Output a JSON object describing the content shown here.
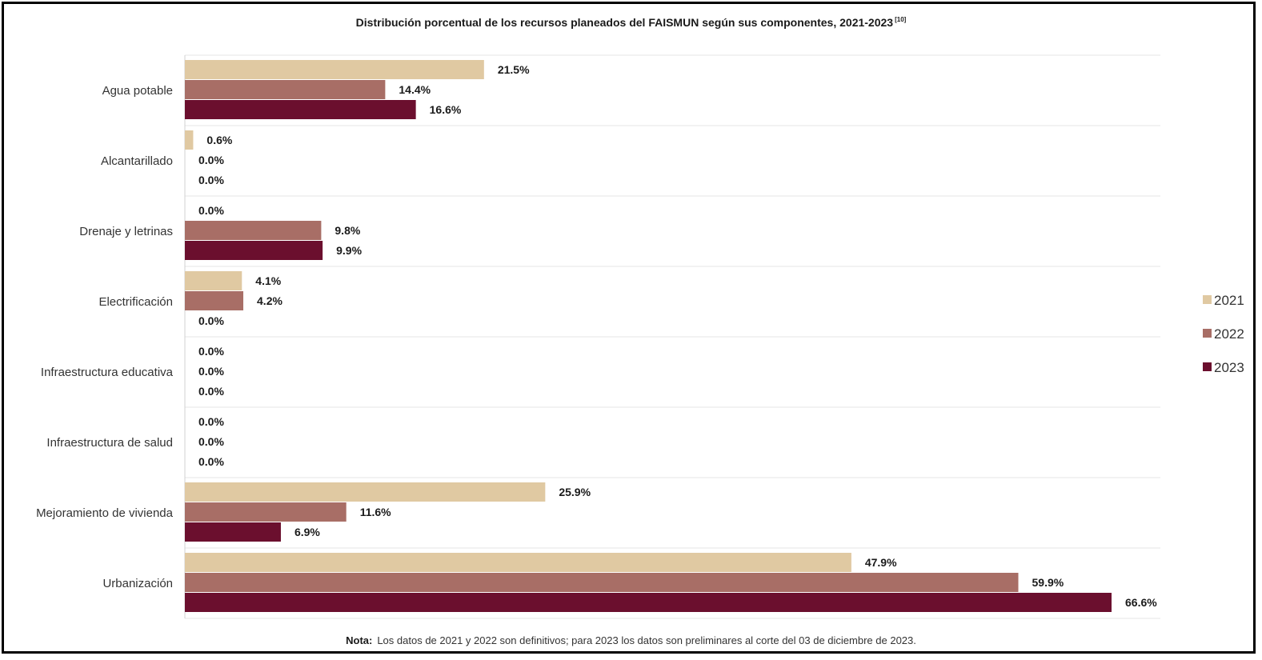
{
  "chart_data": {
    "type": "bar",
    "orientation": "horizontal",
    "title": "Distribución porcentual de los recursos planeados del FAISMUN según sus componentes, 2021-2023",
    "title_ref": "[10]",
    "categories": [
      "Agua potable",
      "Alcantarillado",
      "Drenaje y letrinas",
      "Electrificación",
      "Infraestructura educativa",
      "Infraestructura de salud",
      "Mejoramiento de vivienda",
      "Urbanización"
    ],
    "series": [
      {
        "name": "2021",
        "color": "#e0c9a2",
        "values": [
          21.5,
          0.6,
          0.0,
          4.1,
          0.0,
          0.0,
          25.9,
          47.9
        ],
        "labels": [
          "21.5%",
          "0.6%",
          "0.0%",
          "4.1%",
          "0.0%",
          "0.0%",
          "25.9%",
          "47.9%"
        ]
      },
      {
        "name": "2022",
        "color": "#a86e66",
        "values": [
          14.4,
          0.0,
          9.8,
          4.2,
          0.0,
          0.0,
          11.6,
          59.9
        ],
        "labels": [
          "14.4%",
          "0.0%",
          "9.8%",
          "4.2%",
          "0.0%",
          "0.0%",
          "11.6%",
          "59.9%"
        ]
      },
      {
        "name": "2023",
        "color": "#6b0f2e",
        "values": [
          16.6,
          0.0,
          9.9,
          0.0,
          0.0,
          0.0,
          6.9,
          66.6
        ],
        "labels": [
          "16.6%",
          "0.0%",
          "9.9%",
          "0.0%",
          "0.0%",
          "0.0%",
          "6.9%",
          "66.6%"
        ]
      }
    ],
    "xlim": [
      0,
      70
    ],
    "grid": "horizontal separators between categories",
    "legend_position": "right"
  },
  "note": {
    "label": "Nota:",
    "text": "Los datos de 2021 y 2022 son definitivos; para 2023 los datos son preliminares al corte del 03 de diciembre de 2023."
  }
}
